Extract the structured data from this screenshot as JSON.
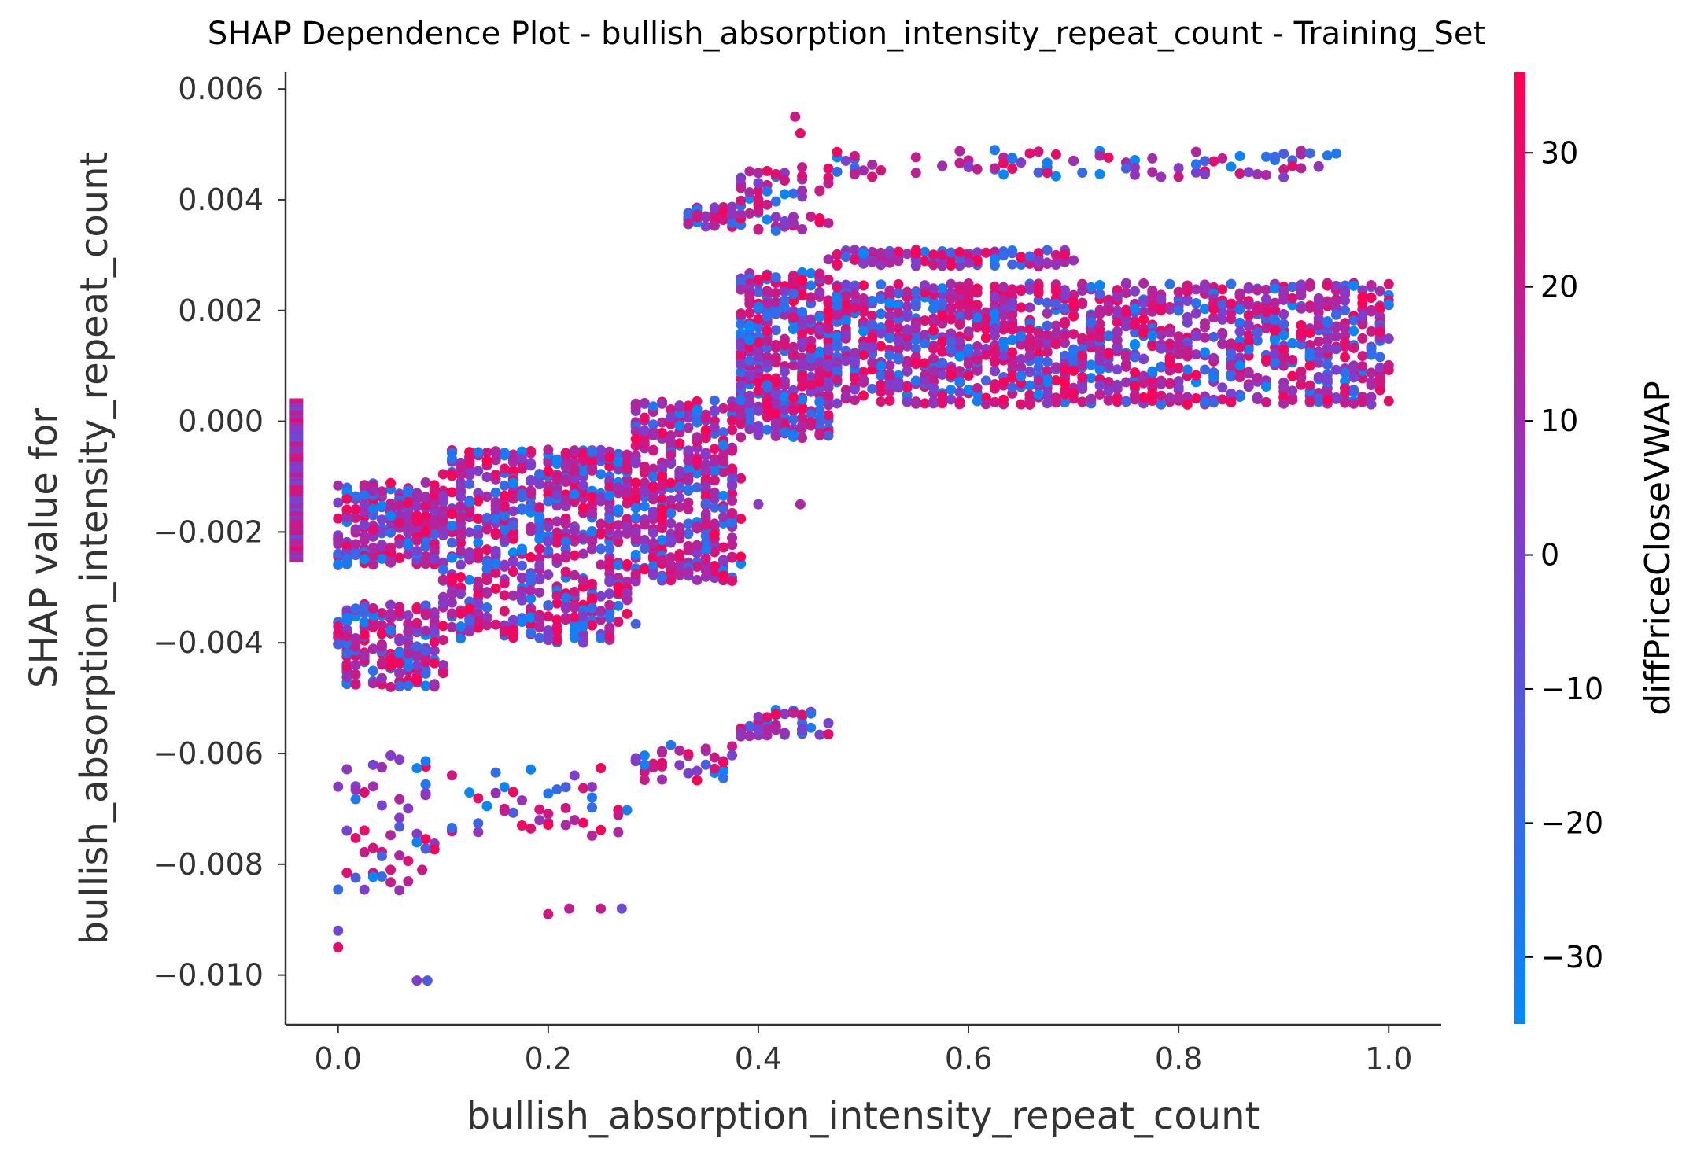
{
  "chart_data": {
    "type": "scatter",
    "title": "SHAP Dependence Plot - bullish_absorption_intensity_repeat_count - Training_Set",
    "xlabel": "bullish_absorption_intensity_repeat_count",
    "ylabel_line1": "SHAP value for",
    "ylabel_line2": "bullish_absorption_intensity_repeat_count",
    "xlim": [
      -0.05,
      1.05
    ],
    "ylim": [
      -0.0109,
      0.0063
    ],
    "x_ticks": [
      0.0,
      0.2,
      0.4,
      0.6,
      0.8,
      1.0
    ],
    "x_tick_labels": [
      "0.0",
      "0.2",
      "0.4",
      "0.6",
      "0.8",
      "1.0"
    ],
    "y_ticks": [
      0.006,
      0.004,
      0.002,
      0.0,
      -0.002,
      -0.004,
      -0.006,
      -0.008,
      -0.01
    ],
    "y_tick_labels": [
      "0.006",
      "0.004",
      "0.002",
      "0.000",
      "−0.002",
      "−0.004",
      "−0.006",
      "−0.008",
      "−0.010"
    ],
    "colorbar": {
      "label": "diffPriceCloseVWAP",
      "range": [
        -35,
        36
      ],
      "ticks": [
        30,
        20,
        10,
        0,
        -10,
        -20,
        -30
      ],
      "tick_labels": [
        "30",
        "20",
        "10",
        "0",
        "−10",
        "−20",
        "−30"
      ],
      "low_color": "#008afb",
      "mid_color": "#7c3fd0",
      "high_color": "#ff0052"
    },
    "clusters": [
      {
        "x": [
          0.0,
          0.1
        ],
        "y": [
          -0.0026,
          -0.0011
        ],
        "n": 260
      },
      {
        "x": [
          0.0,
          0.1
        ],
        "y": [
          -0.0048,
          -0.0033
        ],
        "n": 200
      },
      {
        "x": [
          0.0,
          0.1
        ],
        "y": [
          -0.0085,
          -0.006
        ],
        "n": 50
      },
      {
        "x": [
          0.1,
          0.28
        ],
        "y": [
          -0.0022,
          -0.0005
        ],
        "n": 420
      },
      {
        "x": [
          0.1,
          0.28
        ],
        "y": [
          -0.004,
          -0.0023
        ],
        "n": 280
      },
      {
        "x": [
          0.1,
          0.28
        ],
        "y": [
          -0.0075,
          -0.0062
        ],
        "n": 45
      },
      {
        "x": [
          0.28,
          0.38
        ],
        "y": [
          -0.0029,
          0.0004
        ],
        "n": 400
      },
      {
        "x": [
          0.28,
          0.38
        ],
        "y": [
          -0.0065,
          -0.0058
        ],
        "n": 35
      },
      {
        "x": [
          0.33,
          0.38
        ],
        "y": [
          0.0035,
          0.0039
        ],
        "n": 35
      },
      {
        "x": [
          0.38,
          0.47
        ],
        "y": [
          -0.0003,
          0.0027
        ],
        "n": 450
      },
      {
        "x": [
          0.38,
          0.47
        ],
        "y": [
          0.0034,
          0.0046
        ],
        "n": 60
      },
      {
        "x": [
          0.38,
          0.47
        ],
        "y": [
          -0.0057,
          -0.0052
        ],
        "n": 45
      },
      {
        "x": [
          0.47,
          1.0
        ],
        "y": [
          0.0003,
          0.0025
        ],
        "n": 1300
      },
      {
        "x": [
          0.47,
          0.7
        ],
        "y": [
          0.0028,
          0.0031
        ],
        "n": 120
      },
      {
        "x": [
          0.47,
          0.96
        ],
        "y": [
          0.0044,
          0.0049
        ],
        "n": 90
      }
    ],
    "outliers": [
      {
        "x": 0.2,
        "y": -0.0089
      },
      {
        "x": 0.22,
        "y": -0.0088
      },
      {
        "x": 0.25,
        "y": -0.0088
      },
      {
        "x": 0.27,
        "y": -0.0088
      },
      {
        "x": 0.0,
        "y": -0.0092
      },
      {
        "x": 0.0,
        "y": -0.0095
      },
      {
        "x": 0.075,
        "y": -0.0101
      },
      {
        "x": 0.085,
        "y": -0.0101
      },
      {
        "x": 0.435,
        "y": 0.0055
      },
      {
        "x": 0.44,
        "y": 0.0052
      },
      {
        "x": 0.44,
        "y": -0.0015
      },
      {
        "x": 0.4,
        "y": -0.0015
      },
      {
        "x": 0.08,
        "y": -0.0081
      },
      {
        "x": 0.05,
        "y": -0.0081
      }
    ],
    "feature_value_marker": {
      "x": -0.04,
      "y": [
        -0.0025,
        0.0004
      ]
    }
  }
}
